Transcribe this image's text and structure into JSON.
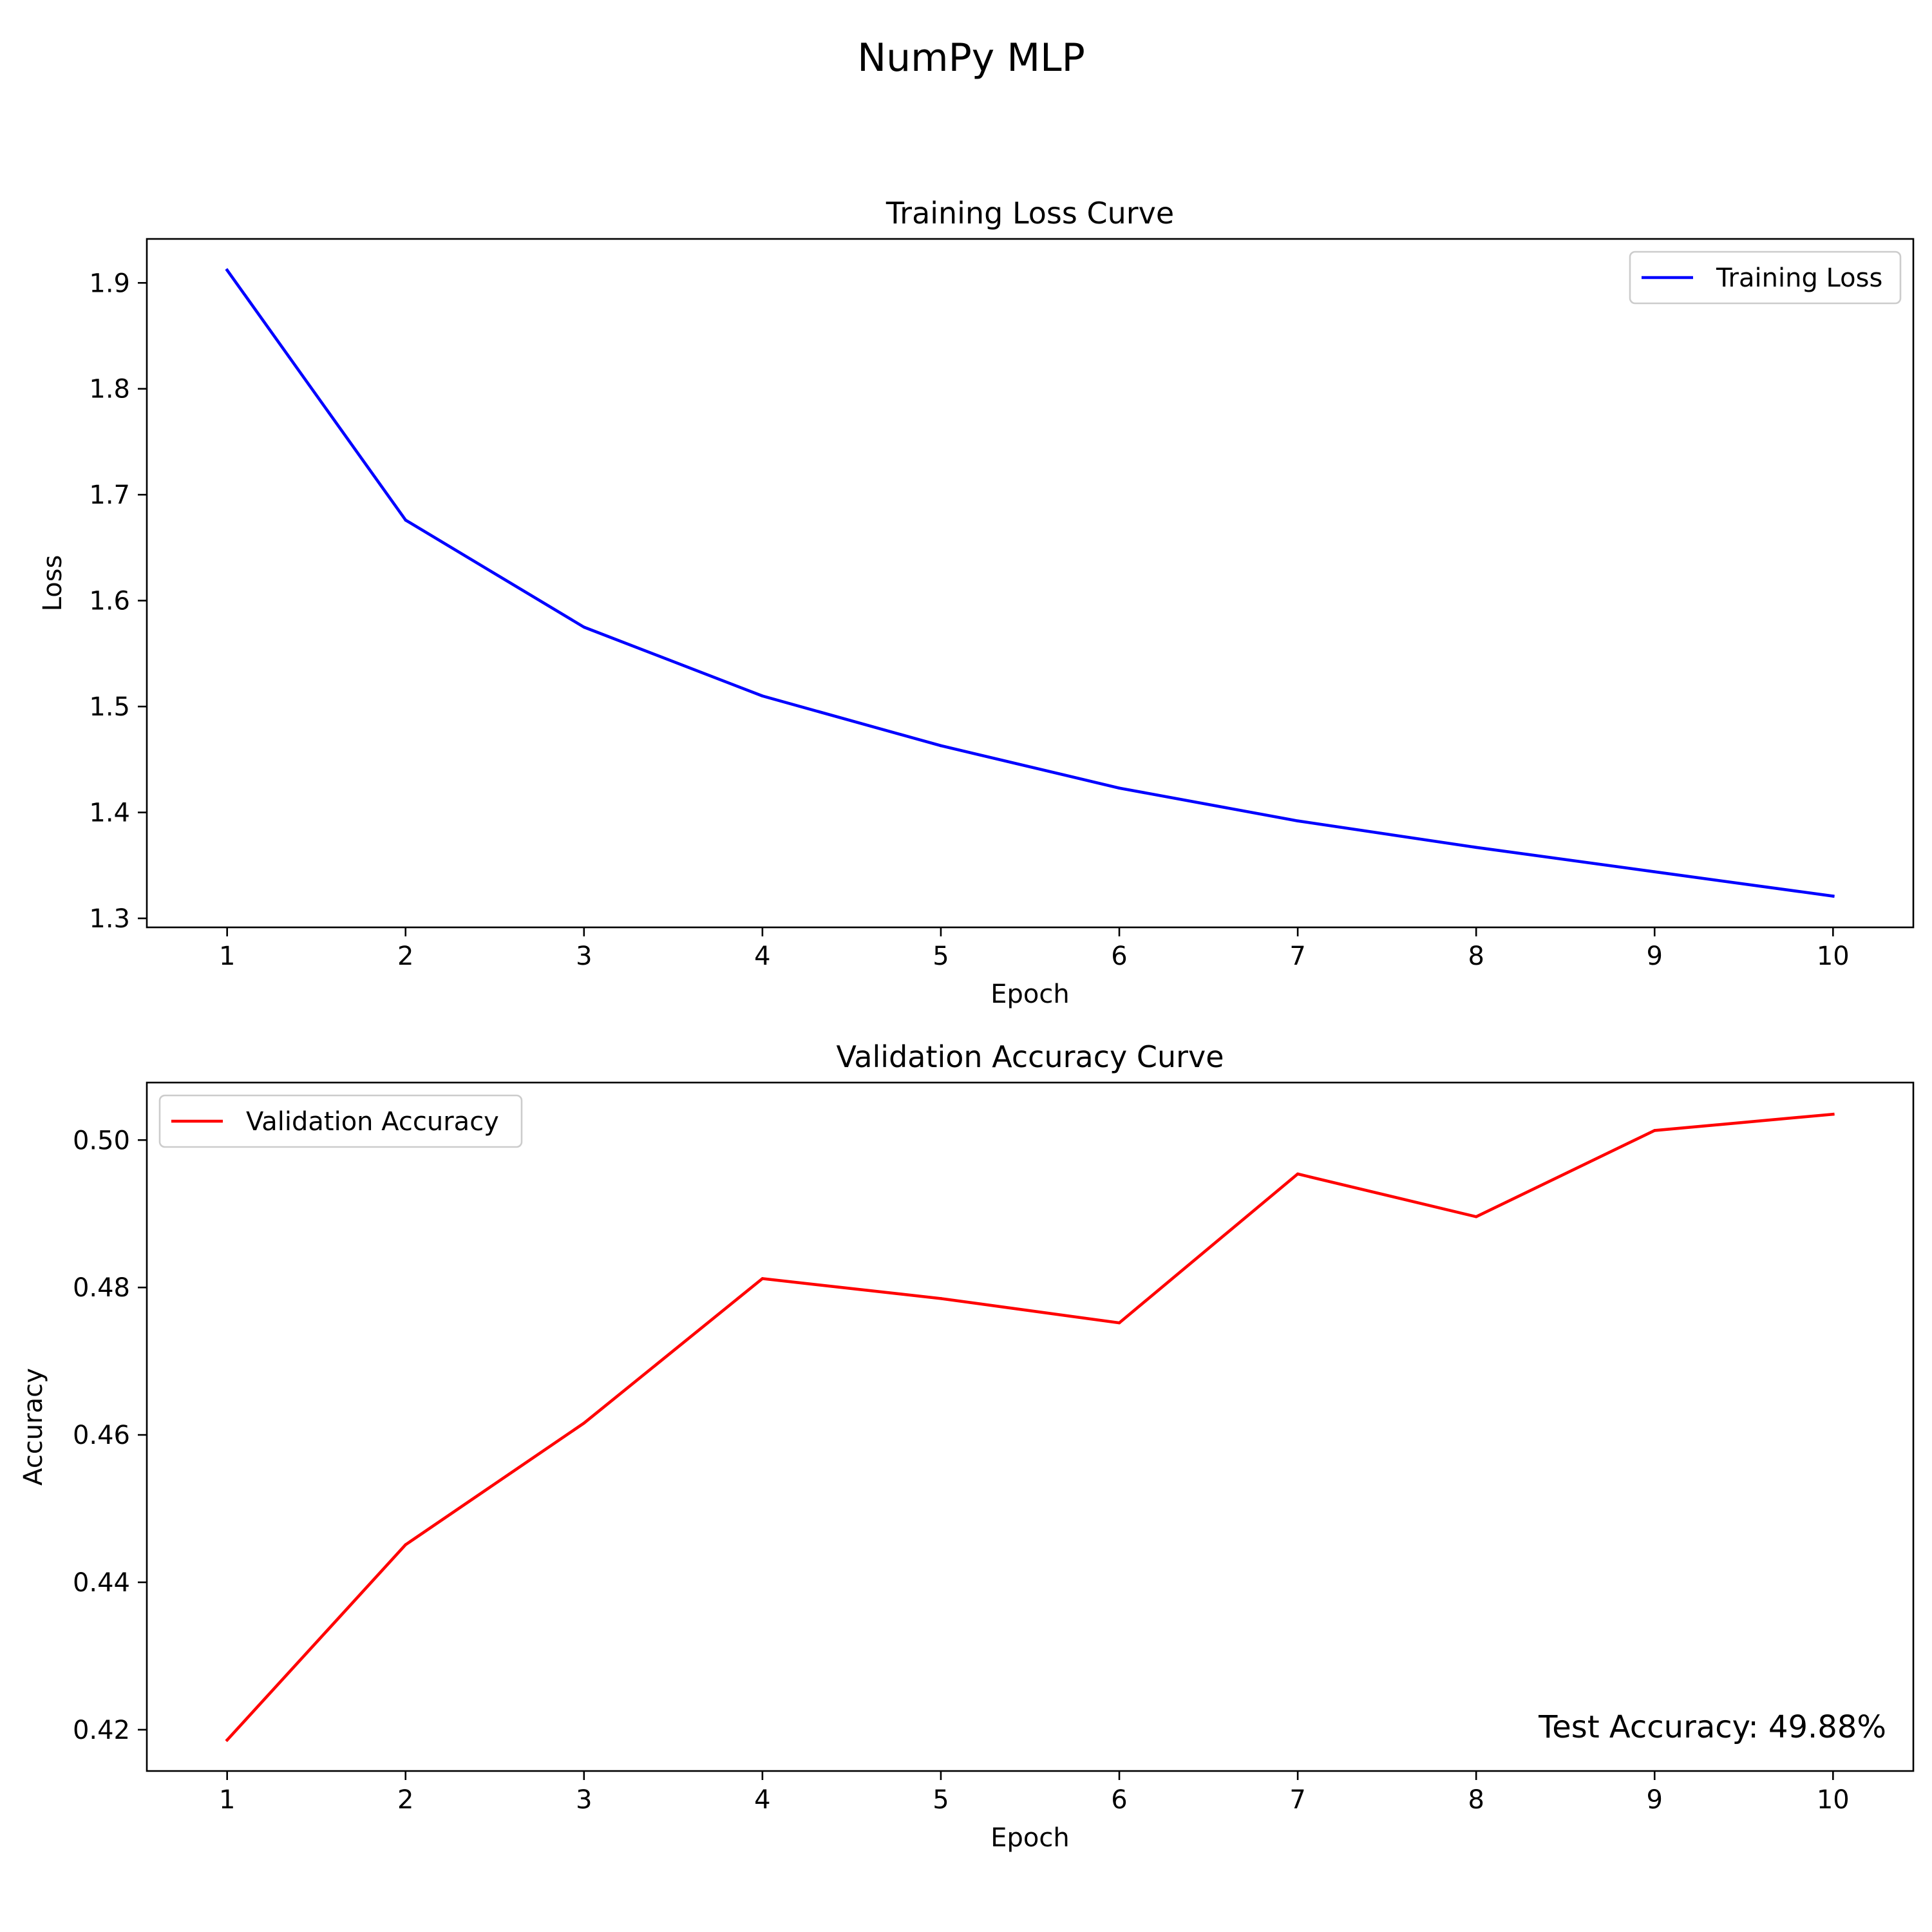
{
  "figure": {
    "title": "NumPy MLP"
  },
  "chart_data": [
    {
      "type": "line",
      "title": "Training Loss Curve",
      "xlabel": "Epoch",
      "ylabel": "Loss",
      "x": [
        1,
        2,
        3,
        4,
        5,
        6,
        7,
        8,
        9,
        10
      ],
      "xticks": [
        "1",
        "2",
        "3",
        "4",
        "5",
        "6",
        "7",
        "8",
        "9",
        "10"
      ],
      "xlim": [
        0.55,
        10.45
      ],
      "yticks": [
        "1.3",
        "1.4",
        "1.5",
        "1.6",
        "1.7",
        "1.8",
        "1.9"
      ],
      "ylim": [
        1.2915,
        1.9415
      ],
      "legend_position": "upper-right",
      "grid": false,
      "series": [
        {
          "name": "Training Loss",
          "color": "#0000ff",
          "values": [
            1.912,
            1.676,
            1.575,
            1.51,
            1.463,
            1.423,
            1.392,
            1.367,
            1.344,
            1.321
          ]
        }
      ],
      "annotation": ""
    },
    {
      "type": "line",
      "title": "Validation Accuracy Curve",
      "xlabel": "Epoch",
      "ylabel": "Accuracy",
      "x": [
        1,
        2,
        3,
        4,
        5,
        6,
        7,
        8,
        9,
        10
      ],
      "xticks": [
        "1",
        "2",
        "3",
        "4",
        "5",
        "6",
        "7",
        "8",
        "9",
        "10"
      ],
      "xlim": [
        0.55,
        10.45
      ],
      "yticks": [
        "0.42",
        "0.44",
        "0.46",
        "0.48",
        "0.50"
      ],
      "ylim": [
        0.4144,
        0.5078
      ],
      "legend_position": "upper-left",
      "grid": false,
      "series": [
        {
          "name": "Validation Accuracy",
          "color": "#ff0000",
          "values": [
            0.4186,
            0.4451,
            0.4616,
            0.4812,
            0.4785,
            0.4752,
            0.4954,
            0.4896,
            0.5013,
            0.5035
          ]
        }
      ],
      "annotation": "Test Accuracy: 49.88%"
    }
  ]
}
